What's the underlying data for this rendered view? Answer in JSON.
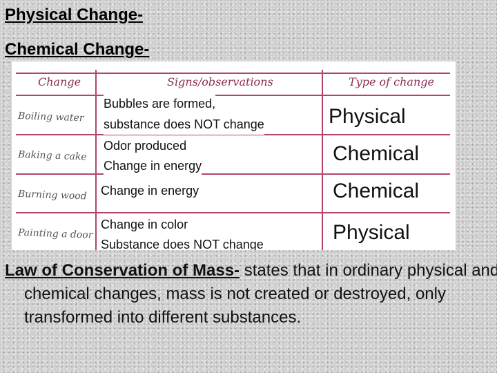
{
  "headings": {
    "physical": "Physical Change-",
    "chemical": "Chemical Change-"
  },
  "table": {
    "columns": [
      "Change",
      "Signs/observations",
      "Type of change"
    ],
    "rows": [
      {
        "change": "Boiling water",
        "observations": [
          "Bubbles are formed,",
          "substance does NOT change"
        ],
        "type": "Physical"
      },
      {
        "change": "Baking a cake",
        "observations": [
          "Odor produced",
          "Change in energy"
        ],
        "type": "Chemical"
      },
      {
        "change": "Burning wood",
        "observations": [
          "Change in energy"
        ],
        "type": "Chemical"
      },
      {
        "change": "Painting a door",
        "observations": [
          "Change in color",
          "Substance does NOT change"
        ],
        "type": "Physical"
      }
    ]
  },
  "law": {
    "term": "Law of Conservation of Mass-",
    "text": " states that in ordinary physical and chemical changes, mass is not created or destroyed, only transformed into different substances."
  },
  "colors": {
    "table_lines": "#b3456a",
    "header_text": "#8c2c55"
  }
}
